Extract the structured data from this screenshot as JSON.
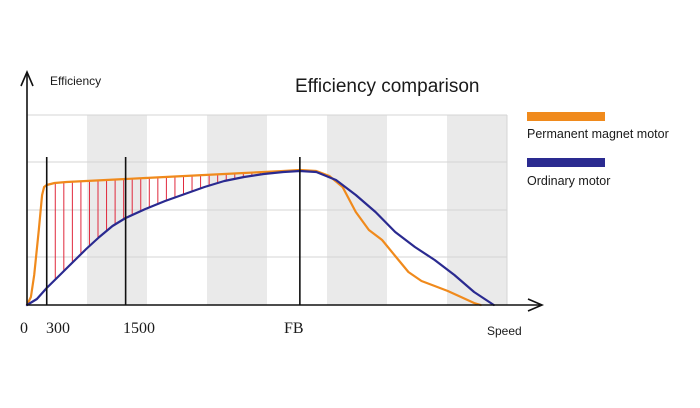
{
  "chart_data": {
    "type": "line",
    "title": "Efficiency comparison",
    "xlabel": "Speed",
    "ylabel": "Efficiency",
    "x_tick_labels": [
      "0",
      "300",
      "1500",
      "FB"
    ],
    "grid": true,
    "legend_position": "right",
    "series": [
      {
        "name": "Permanent magnet motor",
        "color": "#f08a1c",
        "points": [
          [
            0,
            0
          ],
          [
            60,
            8
          ],
          [
            110,
            30
          ],
          [
            180,
            75
          ],
          [
            230,
            110
          ],
          [
            260,
            118
          ],
          [
            300,
            120
          ],
          [
            420,
            122
          ],
          [
            600,
            123
          ],
          [
            900,
            124
          ],
          [
            1200,
            125
          ],
          [
            1500,
            126
          ],
          [
            1800,
            127
          ],
          [
            2100,
            128
          ],
          [
            2400,
            129
          ],
          [
            2700,
            130
          ],
          [
            3000,
            131
          ],
          [
            3300,
            132
          ],
          [
            3600,
            133
          ],
          [
            3900,
            134
          ],
          [
            4150,
            135
          ],
          [
            4400,
            134
          ],
          [
            4600,
            129
          ],
          [
            4800,
            118
          ],
          [
            5000,
            93
          ],
          [
            5200,
            75
          ],
          [
            5400,
            65
          ],
          [
            5600,
            49
          ],
          [
            5800,
            33
          ],
          [
            6000,
            24
          ],
          [
            6200,
            19
          ],
          [
            6400,
            14
          ],
          [
            6600,
            8
          ],
          [
            6800,
            2
          ],
          [
            6900,
            0
          ]
        ]
      },
      {
        "name": "Ordinary motor",
        "color": "#2a2a90",
        "points": [
          [
            0,
            0
          ],
          [
            150,
            6
          ],
          [
            300,
            17
          ],
          [
            500,
            30
          ],
          [
            700,
            43
          ],
          [
            900,
            56
          ],
          [
            1100,
            68
          ],
          [
            1300,
            79
          ],
          [
            1500,
            87
          ],
          [
            1800,
            96
          ],
          [
            2100,
            104
          ],
          [
            2400,
            111
          ],
          [
            2700,
            118
          ],
          [
            3000,
            124
          ],
          [
            3300,
            128
          ],
          [
            3600,
            131
          ],
          [
            3900,
            133
          ],
          [
            4150,
            134
          ],
          [
            4400,
            133
          ],
          [
            4700,
            125
          ],
          [
            5000,
            110
          ],
          [
            5300,
            93
          ],
          [
            5600,
            73
          ],
          [
            5900,
            58
          ],
          [
            6200,
            45
          ],
          [
            6500,
            30
          ],
          [
            6800,
            13
          ],
          [
            7100,
            0
          ]
        ]
      }
    ],
    "markers_x": [
      300,
      1500,
      4150
    ],
    "colors": {
      "axis": "#111111",
      "hatch": "#e0283c",
      "grid_band": "#eaeaea"
    }
  }
}
